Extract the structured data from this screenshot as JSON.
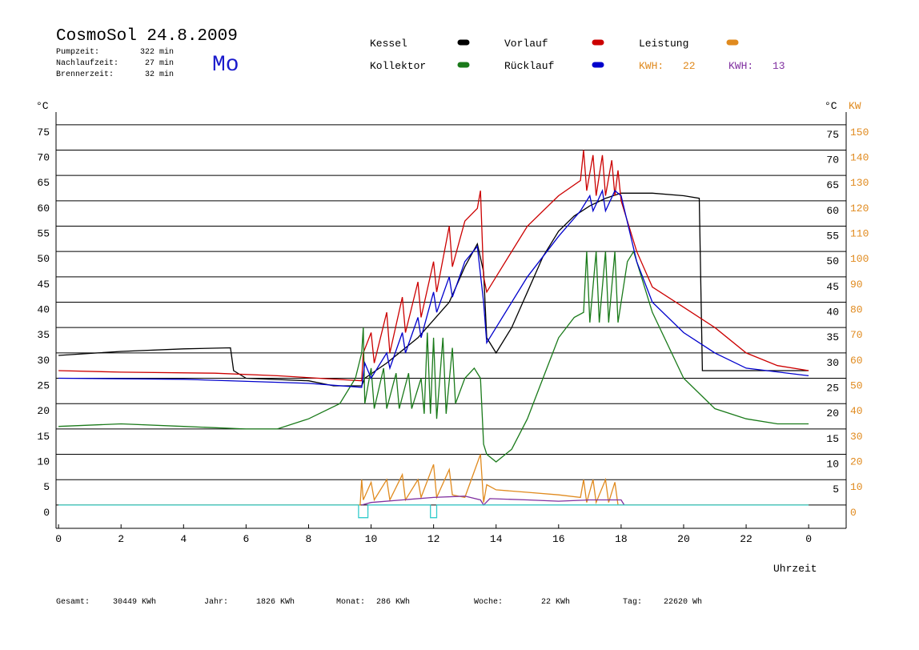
{
  "chart_data": {
    "type": "line",
    "title": "CosmoSol 24.8.2009",
    "day": "Mo",
    "info": [
      {
        "label": "Pumpzeit:",
        "value": "322 min"
      },
      {
        "label": "Nachlaufzeit:",
        "value": "27 min"
      },
      {
        "label": "Brennerzeit:",
        "value": "32 min"
      }
    ],
    "y_unit": "°C",
    "y2_unit": "KW",
    "x_label": "Uhrzeit",
    "kwh_labels": [
      {
        "label": "KWH:",
        "value": 22,
        "color": "#e08a1e"
      },
      {
        "label": "KWH:",
        "value": 13,
        "color": "#8030a0"
      }
    ],
    "footer": [
      {
        "label": "Gesamt:",
        "value": "30449 KWh"
      },
      {
        "label": "Jahr:",
        "value": "1826 KWh"
      },
      {
        "label": "Monat:",
        "value": "286 KWh"
      },
      {
        "label": "Woche:",
        "value": "22 KWh"
      },
      {
        "label": "Tag:",
        "value": "22620 Wh"
      }
    ],
    "xlim": [
      -0.08,
      25.2
    ],
    "xticks": [
      0,
      2,
      4,
      6,
      8,
      10,
      12,
      14,
      16,
      18,
      20,
      22,
      {
        "value": 24,
        "label": "0"
      }
    ],
    "ylim": [
      -4.6,
      77.5
    ],
    "yticks": [
      0,
      5,
      10,
      15,
      20,
      25,
      30,
      35,
      40,
      45,
      50,
      55,
      60,
      65,
      70,
      75
    ],
    "y2lim": [
      -9.2,
      155
    ],
    "y2ticks": [
      0,
      10,
      20,
      30,
      40,
      50,
      60,
      70,
      80,
      90,
      100,
      110,
      120,
      130,
      140,
      150
    ],
    "grid": true,
    "series": [
      {
        "name": "Kessel",
        "color": "#000000",
        "x": [
          0,
          2,
          4,
          5.5,
          5.6,
          6,
          8,
          8.8,
          9.7,
          9.8,
          10.5,
          11.5,
          12.5,
          13,
          13.4,
          13.6,
          13.7,
          14,
          14.5,
          15,
          15.5,
          16,
          16.5,
          17,
          17.5,
          18,
          19,
          20,
          20.5,
          20.6,
          22,
          23,
          24
        ],
        "values": [
          29.5,
          30.3,
          30.8,
          31,
          26.5,
          25,
          24.5,
          23.5,
          23.5,
          25,
          28,
          33,
          40,
          47,
          51.5,
          46,
          33,
          30,
          35,
          42,
          49,
          54,
          57,
          59,
          60.5,
          61.5,
          61.5,
          61,
          60.5,
          26.5,
          26.5,
          26.5,
          26.5
        ]
      },
      {
        "name": "Vorlauf",
        "color": "#cc0000",
        "x": [
          0,
          2,
          5,
          7,
          9.7,
          9.75,
          10,
          10.1,
          10.5,
          10.6,
          11,
          11.1,
          11.5,
          11.6,
          12,
          12.1,
          12.5,
          12.6,
          13,
          13.4,
          13.5,
          13.6,
          13.7,
          14,
          15,
          16,
          16.7,
          16.8,
          16.9,
          17.1,
          17.2,
          17.4,
          17.5,
          17.7,
          17.8,
          17.9,
          18,
          18.5,
          19,
          20,
          21,
          22,
          23,
          24
        ],
        "values": [
          26.5,
          26.2,
          26,
          25.5,
          24.5,
          30,
          34,
          28,
          38,
          30,
          41,
          34,
          44,
          37,
          48,
          42,
          55,
          47,
          56,
          58.5,
          62,
          45,
          42,
          45,
          55,
          61,
          64,
          70,
          62,
          69,
          61,
          69,
          61,
          68,
          61,
          66,
          60,
          50,
          43,
          39,
          35,
          30,
          27.5,
          26.5
        ]
      },
      {
        "name": "Leistung",
        "color": "#e08a1e",
        "axis": "y2",
        "x": [
          0,
          9.65,
          9.7,
          9.75,
          10,
          10.1,
          10.5,
          10.6,
          11,
          11.1,
          11.5,
          11.6,
          12,
          12.1,
          12.5,
          12.6,
          13,
          13.5,
          13.6,
          13.7,
          14,
          15,
          16,
          16.7,
          16.8,
          16.9,
          17.1,
          17.2,
          17.5,
          17.6,
          17.8,
          17.9,
          24
        ],
        "values": [
          0,
          0,
          10,
          2,
          9,
          2,
          10,
          2,
          12,
          2,
          10,
          3,
          16,
          3,
          14,
          4,
          3,
          20,
          1,
          8,
          6,
          5,
          4,
          3,
          10,
          1,
          10,
          1,
          10,
          1,
          9,
          0,
          0
        ]
      },
      {
        "name": "Kollektor",
        "color": "#1a7a1a",
        "x": [
          0,
          2,
          4,
          6,
          7,
          8,
          9,
          9.5,
          9.7,
          9.75,
          9.8,
          10,
          10.1,
          10.4,
          10.5,
          10.8,
          10.9,
          11.2,
          11.3,
          11.6,
          11.7,
          11.8,
          11.9,
          12,
          12.1,
          12.3,
          12.4,
          12.6,
          12.7,
          13,
          13.3,
          13.5,
          13.6,
          13.7,
          14,
          14.5,
          15,
          15.5,
          16,
          16.5,
          16.8,
          16.9,
          17,
          17.2,
          17.3,
          17.5,
          17.6,
          17.8,
          17.9,
          18.2,
          18.4,
          19,
          20,
          21,
          22,
          23,
          24
        ],
        "values": [
          15.5,
          16,
          15.5,
          15,
          15,
          17,
          20,
          25,
          30,
          35,
          20,
          27,
          19,
          27,
          19,
          26,
          19,
          26,
          19,
          25,
          18,
          34,
          18,
          33,
          17,
          33,
          18,
          31,
          20,
          25,
          27,
          25,
          12,
          10,
          8.5,
          11,
          17,
          25,
          33,
          37,
          38,
          50,
          36,
          50,
          36,
          50,
          36,
          50,
          36,
          48,
          50,
          38,
          25,
          19,
          17,
          16,
          16
        ]
      },
      {
        "name": "Rücklauf",
        "color": "#0000cc",
        "x": [
          0,
          4,
          8,
          9.7,
          9.8,
          10,
          10.5,
          10.6,
          11,
          11.1,
          11.5,
          11.6,
          12,
          12.1,
          12.5,
          12.6,
          13,
          13.4,
          13.6,
          13.7,
          14,
          15,
          16,
          16.7,
          17,
          17.1,
          17.4,
          17.5,
          17.8,
          18,
          18.5,
          19,
          20,
          21,
          22,
          24
        ],
        "values": [
          25,
          24.8,
          24,
          23.2,
          28,
          25,
          30,
          27,
          34,
          30,
          37,
          33,
          42,
          38,
          45,
          41,
          48,
          51,
          40,
          32,
          35,
          45,
          53,
          58,
          61,
          58,
          62,
          58,
          62,
          61,
          48,
          40,
          34,
          30,
          27,
          25.5
        ]
      },
      {
        "color": "#8030a0",
        "axis": "y2",
        "x": [
          9.7,
          10,
          11,
          12,
          13,
          13.5,
          13.6,
          13.8,
          15,
          16,
          17,
          18,
          18.1
        ],
        "values": [
          0,
          1,
          2,
          3,
          3.5,
          2,
          0,
          2.5,
          2,
          1.5,
          2,
          2,
          0
        ]
      },
      {
        "color": "#33cccc",
        "x": [
          0,
          9.6,
          9.6,
          9.9,
          9.9,
          11.9,
          11.9,
          12.1,
          12.1,
          24
        ],
        "values": [
          0,
          0,
          -2.5,
          -2.5,
          0,
          0,
          -2.5,
          -2.5,
          0,
          0
        ]
      }
    ]
  }
}
